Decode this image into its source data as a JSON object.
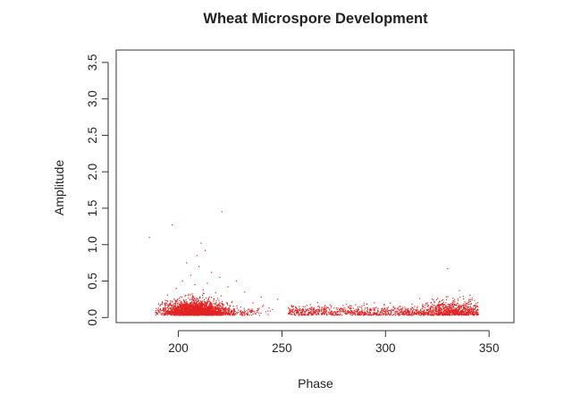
{
  "chart_data": {
    "type": "scatter",
    "title": "Wheat Microspore Development",
    "xlabel": "Phase",
    "ylabel": "Amplitude",
    "xlim": [
      170,
      362
    ],
    "ylim": [
      -0.07,
      3.67
    ],
    "x_ticks": [
      200,
      250,
      300,
      350
    ],
    "y_ticks": [
      0.0,
      0.5,
      1.0,
      1.5,
      2.0,
      2.5,
      3.0,
      3.5
    ],
    "x_tick_labels": [
      "200",
      "250",
      "300",
      "350"
    ],
    "y_tick_labels": [
      "0.0",
      "0.5",
      "1.0",
      "1.5",
      "2.0",
      "2.5",
      "3.0",
      "3.5"
    ],
    "grid": false,
    "legend": "none",
    "point_color": "#e32222",
    "series": [
      {
        "points": [
          [
            186,
            1.1
          ],
          [
            197,
            1.27
          ],
          [
            221,
            1.45
          ],
          [
            211,
            1.02
          ],
          [
            209,
            0.85
          ],
          [
            213,
            0.92
          ],
          [
            204,
            0.75
          ],
          [
            210,
            0.7
          ],
          [
            216,
            0.62
          ],
          [
            206,
            0.58
          ],
          [
            220,
            0.55
          ],
          [
            228,
            0.5
          ],
          [
            202,
            0.5
          ],
          [
            214,
            0.47
          ],
          [
            208,
            0.45
          ],
          [
            224,
            0.42
          ],
          [
            199,
            0.4
          ],
          [
            212,
            0.38
          ],
          [
            232,
            0.35
          ],
          [
            218,
            0.34
          ],
          [
            205,
            0.32
          ],
          [
            240,
            0.28
          ],
          [
            207,
            0.3
          ],
          [
            215,
            0.28
          ],
          [
            248,
            0.25
          ],
          [
            219,
            0.26
          ],
          [
            226,
            0.22
          ],
          [
            236,
            0.2
          ],
          [
            330,
            0.67
          ],
          [
            336,
            0.28
          ],
          [
            341,
            0.22
          ],
          [
            326,
            0.22
          ],
          [
            318,
            0.18
          ],
          [
            268,
            0.15
          ],
          [
            283,
            0.12
          ]
        ]
      }
    ],
    "dense_regions": [
      {
        "x_range": [
          189,
          245
        ],
        "center": 208,
        "spread": 6.5,
        "amp_scale": 0.09,
        "count": 2200
      },
      {
        "x_range": [
          189,
          250
        ],
        "center": 213,
        "spread": 12,
        "amp_scale": 0.06,
        "count": 700
      },
      {
        "x_range": [
          253,
          345
        ],
        "center": null,
        "spread": null,
        "amp_scale": 0.06,
        "count": 1100
      },
      {
        "x_range": [
          310,
          345
        ],
        "center": 333,
        "spread": 7,
        "amp_scale": 0.1,
        "count": 500
      }
    ]
  }
}
